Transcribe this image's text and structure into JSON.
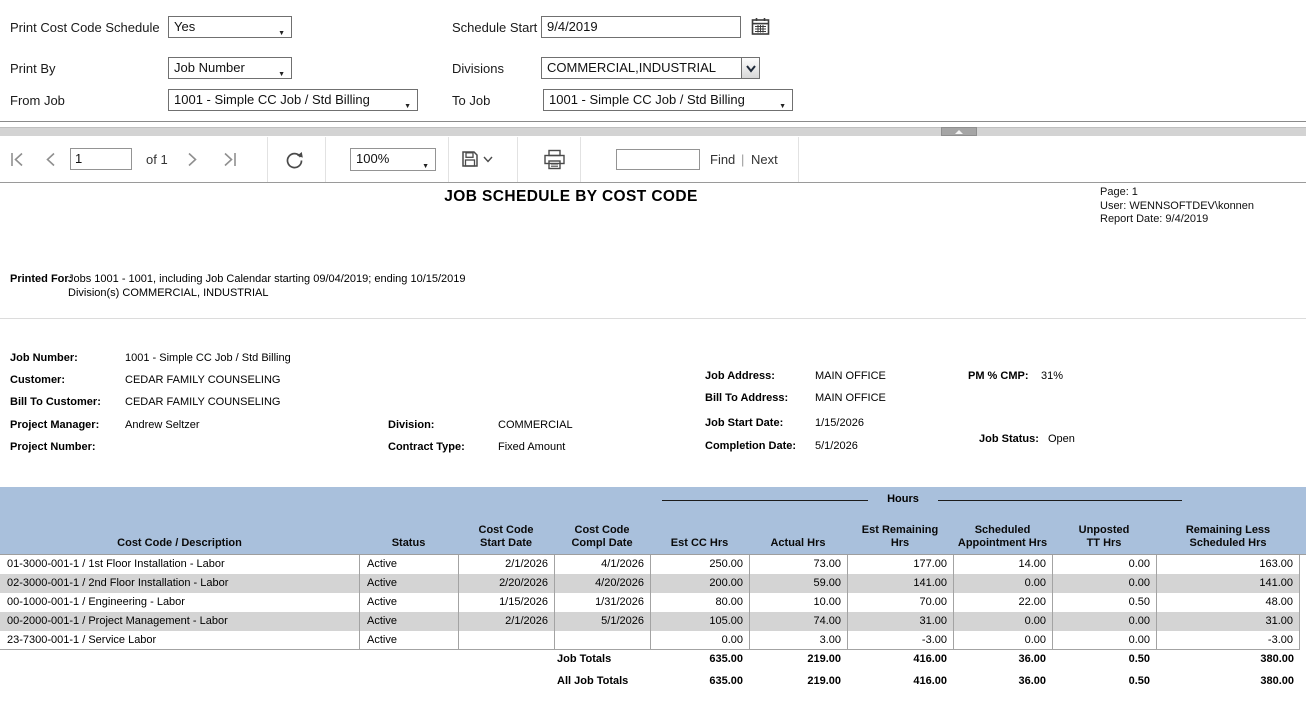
{
  "params": {
    "print_cost_code_schedule": {
      "label": "Print Cost Code Schedule",
      "value": "Yes"
    },
    "print_by": {
      "label": "Print By",
      "value": "Job Number"
    },
    "from_job": {
      "label": "From Job",
      "value": "1001 -  Simple CC Job / Std Billing"
    },
    "schedule_start": {
      "label": "Schedule Start",
      "value": "9/4/2019"
    },
    "divisions": {
      "label": "Divisions",
      "value": "COMMERCIAL,INDUSTRIAL"
    },
    "to_job": {
      "label": "To Job",
      "value": "1001 -  Simple CC Job / Std Billing"
    }
  },
  "toolbar": {
    "page_current": "1",
    "page_of_label": "of 1",
    "zoom_value": "100%",
    "find_value": "",
    "find_label": "Find",
    "separator": "|",
    "next_label": "Next"
  },
  "icons": {
    "first_page": "first-page-icon",
    "previous_page": "previous-page-icon",
    "next_page": "next-page-icon",
    "last_page": "last-page-icon",
    "refresh": "refresh-icon",
    "save_export": "save-icon",
    "save_menu": "chevron-down-icon",
    "print": "print-icon",
    "calendar": "calendar-icon",
    "divisions_dropdown": "chevron-down-icon",
    "splitter_collapse": "chevron-up-icon"
  },
  "colors": {
    "table_header_bg": "#a9c0dc",
    "row_alt_bg": "#d4d4d4",
    "grid_border": "#a3a3a3"
  },
  "report": {
    "title": "JOB SCHEDULE BY COST CODE",
    "meta": {
      "page": "Page: 1",
      "user": "User: WENNSOFTDEV\\konnen",
      "report_date": "Report Date: 9/4/2019"
    },
    "printed_for": {
      "label": "Printed For:",
      "line1": "Jobs 1001 - 1001, including Job Calendar starting 09/04/2019; ending 10/15/2019",
      "line2": "Division(s) COMMERCIAL, INDUSTRIAL"
    },
    "job_info": {
      "left": [
        {
          "label": "Job Number:",
          "value": "1001 - Simple CC Job / Std Billing"
        },
        {
          "label": "Customer:",
          "value": "CEDAR FAMILY COUNSELING"
        },
        {
          "label": "Bill To Customer:",
          "value": "CEDAR FAMILY COUNSELING"
        },
        {
          "label": "Project Manager:",
          "value": "Andrew Seltzer"
        },
        {
          "label": "Project Number:",
          "value": ""
        }
      ],
      "mid": [
        {
          "label": "Division:",
          "value": "COMMERCIAL"
        },
        {
          "label": "Contract Type:",
          "value": "Fixed Amount"
        }
      ],
      "right": [
        {
          "label": "Job Address:",
          "value": "MAIN OFFICE"
        },
        {
          "label": "Bill To Address:",
          "value": "MAIN OFFICE"
        },
        {
          "label": "Job Start Date:",
          "value": "1/15/2026"
        },
        {
          "label": "Completion Date:",
          "value": "5/1/2026"
        }
      ],
      "far": [
        {
          "label": "PM % CMP:",
          "value": "31%"
        },
        {
          "label": "Job Status:",
          "value": "Open"
        }
      ]
    }
  },
  "table": {
    "hours_group_label": "Hours",
    "columns": [
      {
        "lines": [
          "Cost Code / Description"
        ]
      },
      {
        "lines": [
          "Status"
        ]
      },
      {
        "lines": [
          "Cost Code",
          "Start Date"
        ]
      },
      {
        "lines": [
          "Cost Code",
          "Compl Date"
        ]
      },
      {
        "lines": [
          "Est CC Hrs"
        ]
      },
      {
        "lines": [
          "Actual Hrs"
        ]
      },
      {
        "lines": [
          "Est Remaining",
          "Hrs"
        ]
      },
      {
        "lines": [
          "Scheduled",
          "Appointment Hrs"
        ]
      },
      {
        "lines": [
          "Unposted",
          "TT Hrs"
        ]
      },
      {
        "lines": [
          "Remaining Less",
          "Scheduled Hrs"
        ]
      }
    ],
    "rows": [
      [
        "01-3000-001-1 / 1st Floor Installation - Labor",
        "Active",
        "2/1/2026",
        "4/1/2026",
        "250.00",
        "73.00",
        "177.00",
        "14.00",
        "0.00",
        "163.00"
      ],
      [
        "02-3000-001-1 / 2nd Floor Installation - Labor",
        "Active",
        "2/20/2026",
        "4/20/2026",
        "200.00",
        "59.00",
        "141.00",
        "0.00",
        "0.00",
        "141.00"
      ],
      [
        "00-1000-001-1 / Engineering - Labor",
        "Active",
        "1/15/2026",
        "1/31/2026",
        "80.00",
        "10.00",
        "70.00",
        "22.00",
        "0.50",
        "48.00"
      ],
      [
        "00-2000-001-1 / Project Management - Labor",
        "Active",
        "2/1/2026",
        "5/1/2026",
        "105.00",
        "74.00",
        "31.00",
        "0.00",
        "0.00",
        "31.00"
      ],
      [
        "23-7300-001-1 / Service Labor",
        "Active",
        "",
        "",
        "0.00",
        "3.00",
        "-3.00",
        "0.00",
        "0.00",
        "-3.00"
      ]
    ],
    "totals": [
      {
        "label": "Job Totals",
        "values": [
          "635.00",
          "219.00",
          "416.00",
          "36.00",
          "0.50",
          "380.00"
        ]
      },
      {
        "label": "All Job Totals",
        "values": [
          "635.00",
          "219.00",
          "416.00",
          "36.00",
          "0.50",
          "380.00"
        ]
      }
    ]
  }
}
